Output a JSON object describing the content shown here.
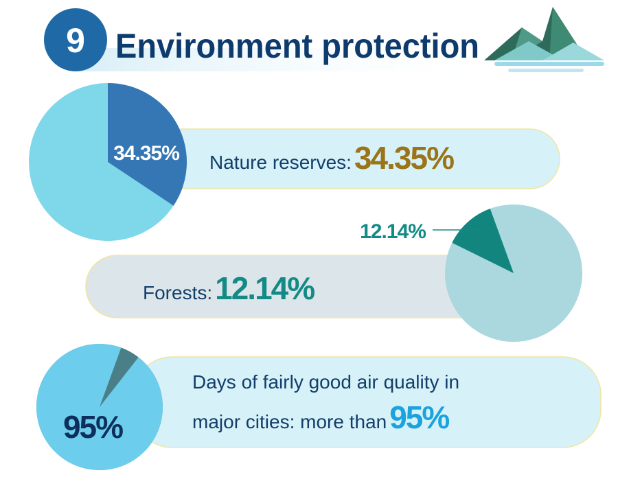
{
  "header": {
    "number": "9",
    "title": "Environment protection"
  },
  "chart_data": [
    {
      "type": "pie",
      "label": "Nature reserves:",
      "values": [
        34.35
      ],
      "value_labels": [
        "34.35%"
      ],
      "color": "#3577b5",
      "rest_color": "#7fd8ea"
    },
    {
      "type": "pie",
      "label": "Forests:",
      "values": [
        12.14
      ],
      "value_labels": [
        "12.14%"
      ],
      "color": "#13857f",
      "rest_color": "#aad8de"
    },
    {
      "type": "pie",
      "label": [
        "Days of fairly good air quality in",
        "major cities: more than"
      ],
      "values": [
        95
      ],
      "value_labels": [
        "95%"
      ],
      "color": "#6ccdec",
      "rest_color": "#4a7f88"
    }
  ]
}
